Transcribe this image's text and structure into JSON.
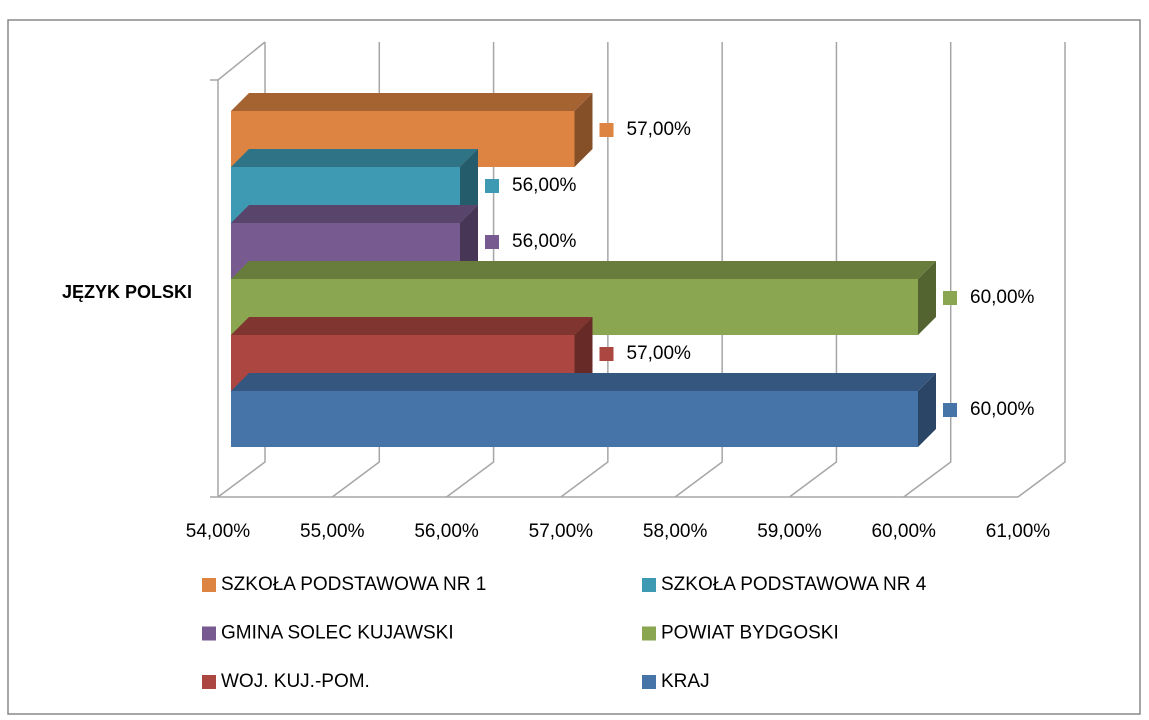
{
  "chart_data": {
    "type": "bar3d_horizontal",
    "categories": [
      "JĘZYK POLSKI"
    ],
    "series": [
      {
        "name": "SZKOŁA PODSTAWOWA NR 1",
        "color": "#dd8443",
        "values": [
          57
        ],
        "value_labels": [
          "57,00%"
        ]
      },
      {
        "name": "SZKOŁA PODSTAWOWA NR 4",
        "color": "#3e9ab2",
        "values": [
          56
        ],
        "value_labels": [
          "56,00%"
        ]
      },
      {
        "name": "GMINA SOLEC KUJAWSKI",
        "color": "#765a90",
        "values": [
          56
        ],
        "value_labels": [
          "56,00%"
        ]
      },
      {
        "name": "POWIAT BYDGOSKI",
        "color": "#8aa650",
        "values": [
          60
        ],
        "value_labels": [
          "60,00%"
        ]
      },
      {
        "name": "WOJ. KUJ.-POM.",
        "color": "#ac4641",
        "values": [
          57
        ],
        "value_labels": [
          "57,00%"
        ]
      },
      {
        "name": "KRAJ",
        "color": "#4673a8",
        "values": [
          60
        ],
        "value_labels": [
          "60,00%"
        ]
      }
    ],
    "xlim": [
      54,
      61
    ],
    "xticks": [
      {
        "value": 54,
        "label": "54,00%"
      },
      {
        "value": 55,
        "label": "55,00%"
      },
      {
        "value": 56,
        "label": "56,00%"
      },
      {
        "value": 57,
        "label": "57,00%"
      },
      {
        "value": 58,
        "label": "58,00%"
      },
      {
        "value": 59,
        "label": "59,00%"
      },
      {
        "value": 60,
        "label": "60,00%"
      },
      {
        "value": 61,
        "label": "61,00%"
      }
    ],
    "grid": true,
    "legend": "bottom"
  }
}
